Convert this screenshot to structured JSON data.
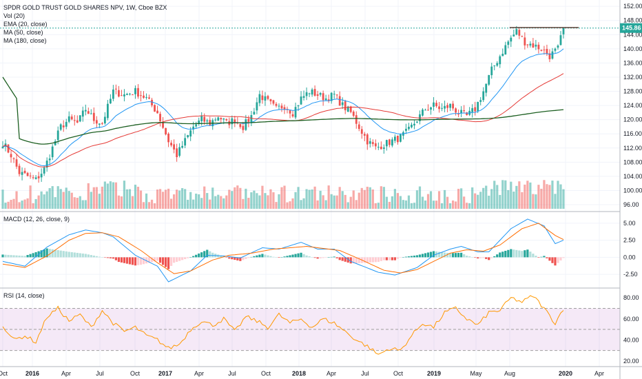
{
  "chart_data": [
    {
      "type": "candlestick",
      "title": "SPDR GOLD TRUST GOLD SHARES NPV, 1W, Cboe BZX",
      "legend": [
        "Vol (20)",
        "EMA (20, close)",
        "MA (50, close)",
        "MA (180, close)"
      ],
      "ylim": [
        96,
        153
      ],
      "y_ticks": [
        "152.00",
        "148.00",
        "144.00",
        "140.00",
        "136.00",
        "132.00",
        "128.00",
        "124.00",
        "120.00",
        "116.00",
        "112.00",
        "108.00",
        "104.00",
        "100.00",
        "96.00"
      ],
      "last_price": "145.86",
      "x_ticks": [
        "Oct",
        "2016",
        "Apr",
        "Jul",
        "Oct",
        "2017",
        "Apr",
        "Jul",
        "Oct",
        "2018",
        "Apr",
        "Jul",
        "Oct",
        "2019",
        "May",
        "Aug",
        "2020",
        "Apr"
      ],
      "close_key_points": [
        [
          0,
          113.5
        ],
        [
          3,
          110
        ],
        [
          6,
          105
        ],
        [
          9,
          104
        ],
        [
          12,
          103
        ],
        [
          15,
          106
        ],
        [
          18,
          112
        ],
        [
          21,
          118
        ],
        [
          24,
          120
        ],
        [
          27,
          119
        ],
        [
          30,
          123
        ],
        [
          33,
          120
        ],
        [
          36,
          119
        ],
        [
          40,
          128
        ],
        [
          44,
          127
        ],
        [
          48,
          128
        ],
        [
          52,
          126
        ],
        [
          56,
          122
        ],
        [
          60,
          114
        ],
        [
          63,
          110
        ],
        [
          66,
          114
        ],
        [
          69,
          118
        ],
        [
          72,
          120
        ],
        [
          75,
          119
        ],
        [
          78,
          121
        ],
        [
          81,
          119
        ],
        [
          84,
          120
        ],
        [
          87,
          118
        ],
        [
          90,
          121
        ],
        [
          93,
          127
        ],
        [
          96,
          125
        ],
        [
          99,
          123
        ],
        [
          102,
          124
        ],
        [
          105,
          122
        ],
        [
          108,
          126
        ],
        [
          111,
          128
        ],
        [
          114,
          127
        ],
        [
          117,
          126
        ],
        [
          120,
          127
        ],
        [
          123,
          124
        ],
        [
          126,
          122
        ],
        [
          129,
          118
        ],
        [
          132,
          114
        ],
        [
          135,
          112
        ],
        [
          138,
          113
        ],
        [
          141,
          114
        ],
        [
          144,
          115
        ],
        [
          147,
          117
        ],
        [
          150,
          120
        ],
        [
          153,
          123
        ],
        [
          156,
          124
        ],
        [
          159,
          123
        ],
        [
          162,
          124
        ],
        [
          165,
          122
        ],
        [
          168,
          121
        ],
        [
          171,
          123
        ],
        [
          174,
          128
        ],
        [
          177,
          134
        ],
        [
          180,
          138
        ],
        [
          183,
          142
        ],
        [
          186,
          145
        ],
        [
          189,
          142
        ],
        [
          192,
          141
        ],
        [
          195,
          140
        ],
        [
          198,
          138
        ],
        [
          201,
          140
        ],
        [
          203,
          145.86
        ]
      ],
      "volume_scale": "relative",
      "series_colors": {
        "up": "#26a69a",
        "down": "#ef5350",
        "ema20": "#2196f3",
        "ma50": "#e53935",
        "ma180": "#1b5e20",
        "hline": "#5d4037",
        "price_line": "#26a69a"
      }
    },
    {
      "type": "line",
      "title": "MACD (12, 26, close, 9)",
      "ylim": [
        -3.8,
        6.2
      ],
      "y_ticks": [
        "5.00",
        "2.50",
        "0.00",
        "-2.50"
      ],
      "macd_key_points": [
        [
          0,
          -0.6
        ],
        [
          8,
          -1.3
        ],
        [
          16,
          1.5
        ],
        [
          24,
          3.3
        ],
        [
          30,
          4.0
        ],
        [
          36,
          3.6
        ],
        [
          40,
          3.0
        ],
        [
          48,
          0.3
        ],
        [
          56,
          -1.3
        ],
        [
          60,
          -3.6
        ],
        [
          68,
          -2.0
        ],
        [
          74,
          0.3
        ],
        [
          80,
          0.2
        ],
        [
          86,
          -0.1
        ],
        [
          94,
          1.4
        ],
        [
          100,
          1.2
        ],
        [
          108,
          2.2
        ],
        [
          114,
          1.2
        ],
        [
          120,
          1.2
        ],
        [
          126,
          -0.6
        ],
        [
          136,
          -2.2
        ],
        [
          142,
          -2.6
        ],
        [
          150,
          -1.5
        ],
        [
          156,
          0.3
        ],
        [
          162,
          1.2
        ],
        [
          166,
          1.6
        ],
        [
          172,
          0.8
        ],
        [
          176,
          0.8
        ],
        [
          184,
          4.2
        ],
        [
          190,
          5.6
        ],
        [
          196,
          4.6
        ],
        [
          200,
          2.0
        ],
        [
          203,
          2.5
        ]
      ],
      "signal_key_points": [
        [
          0,
          -1.0
        ],
        [
          8,
          -1.5
        ],
        [
          16,
          0.2
        ],
        [
          24,
          2.5
        ],
        [
          30,
          3.5
        ],
        [
          36,
          3.6
        ],
        [
          42,
          3.0
        ],
        [
          50,
          1.0
        ],
        [
          56,
          -0.8
        ],
        [
          62,
          -2.4
        ],
        [
          68,
          -2.0
        ],
        [
          76,
          -0.4
        ],
        [
          82,
          0.3
        ],
        [
          90,
          0.6
        ],
        [
          98,
          1.2
        ],
        [
          104,
          1.4
        ],
        [
          110,
          1.6
        ],
        [
          116,
          1.3
        ],
        [
          122,
          1.0
        ],
        [
          130,
          -0.4
        ],
        [
          138,
          -1.9
        ],
        [
          144,
          -2.3
        ],
        [
          150,
          -1.8
        ],
        [
          156,
          -0.6
        ],
        [
          162,
          0.6
        ],
        [
          168,
          1.1
        ],
        [
          174,
          0.9
        ],
        [
          180,
          1.8
        ],
        [
          188,
          4.2
        ],
        [
          194,
          5.0
        ],
        [
          200,
          3.2
        ],
        [
          203,
          2.6
        ]
      ]
    },
    {
      "type": "line",
      "title": "RSI (14, close)",
      "ylim": [
        16,
        88
      ],
      "y_ticks": [
        "80.00",
        "60.00",
        "40.00",
        "20.00"
      ],
      "band": [
        30,
        70
      ],
      "rsi_key_points": [
        [
          0,
          54
        ],
        [
          4,
          40
        ],
        [
          8,
          44
        ],
        [
          12,
          38
        ],
        [
          16,
          62
        ],
        [
          20,
          70
        ],
        [
          24,
          58
        ],
        [
          28,
          64
        ],
        [
          32,
          52
        ],
        [
          36,
          68
        ],
        [
          40,
          56
        ],
        [
          44,
          48
        ],
        [
          48,
          52
        ],
        [
          52,
          44
        ],
        [
          56,
          40
        ],
        [
          60,
          32
        ],
        [
          64,
          36
        ],
        [
          68,
          50
        ],
        [
          72,
          58
        ],
        [
          76,
          54
        ],
        [
          80,
          60
        ],
        [
          84,
          48
        ],
        [
          88,
          62
        ],
        [
          92,
          58
        ],
        [
          96,
          52
        ],
        [
          100,
          64
        ],
        [
          104,
          56
        ],
        [
          108,
          60
        ],
        [
          112,
          52
        ],
        [
          116,
          60
        ],
        [
          120,
          56
        ],
        [
          124,
          48
        ],
        [
          128,
          40
        ],
        [
          132,
          34
        ],
        [
          136,
          26
        ],
        [
          140,
          32
        ],
        [
          144,
          30
        ],
        [
          148,
          44
        ],
        [
          152,
          56
        ],
        [
          156,
          52
        ],
        [
          160,
          66
        ],
        [
          164,
          70
        ],
        [
          168,
          60
        ],
        [
          172,
          54
        ],
        [
          176,
          66
        ],
        [
          180,
          68
        ],
        [
          184,
          80
        ],
        [
          188,
          76
        ],
        [
          192,
          82
        ],
        [
          196,
          70
        ],
        [
          200,
          56
        ],
        [
          203,
          70
        ]
      ]
    }
  ]
}
